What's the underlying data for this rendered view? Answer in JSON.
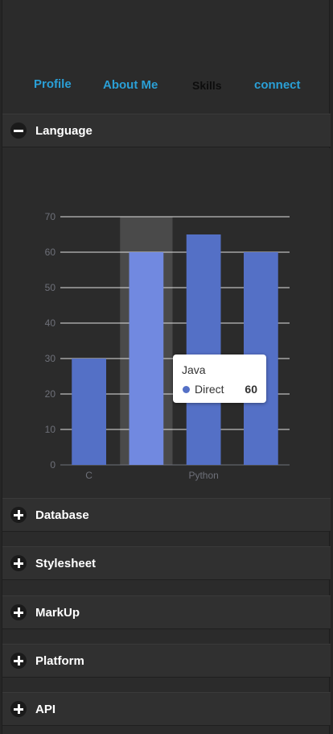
{
  "nav": {
    "items": [
      {
        "label": "Profile"
      },
      {
        "label": "About Me"
      },
      {
        "label": "Skills"
      },
      {
        "label": "connect"
      }
    ]
  },
  "sections": [
    {
      "label": "Language",
      "expanded": true
    },
    {
      "label": "Database",
      "expanded": false
    },
    {
      "label": "Stylesheet",
      "expanded": false
    },
    {
      "label": "MarkUp",
      "expanded": false
    },
    {
      "label": "Platform",
      "expanded": false
    },
    {
      "label": "API",
      "expanded": false
    }
  ],
  "chart_data": {
    "type": "bar",
    "categories": [
      "C",
      "Java",
      "Python",
      ""
    ],
    "x_tick_labels_shown": [
      "C",
      "",
      "Python",
      ""
    ],
    "series": [
      {
        "name": "Direct",
        "values": [
          30,
          60,
          65,
          60
        ]
      }
    ],
    "ylim": [
      0,
      70
    ],
    "yticks": [
      0,
      10,
      20,
      30,
      40,
      50,
      60,
      70
    ],
    "grid": true,
    "highlighted_index": 1,
    "colors": {
      "bar": "#5470c6",
      "bar_highlight": "#7189e0",
      "hover_shadow": "#4a4a4a",
      "grid": "#e0e0e0"
    }
  },
  "tooltip": {
    "title": "Java",
    "series": "Direct",
    "value": "60"
  },
  "colors": {
    "accent": "#2a9fd6",
    "active": "#0d0d0d"
  }
}
